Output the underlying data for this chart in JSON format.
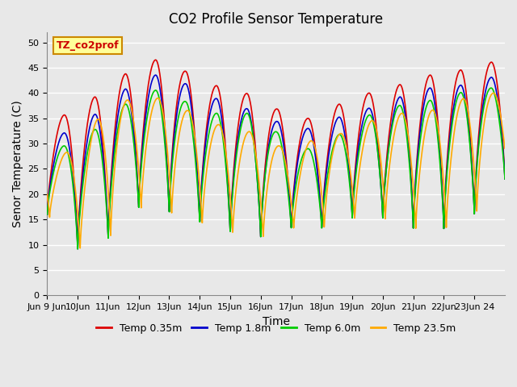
{
  "title": "CO2 Profile Sensor Temperature",
  "xlabel": "Time",
  "ylabel": "Senor Temperature (C)",
  "ylim": [
    0,
    52
  ],
  "xlim_start": 9,
  "xlim_end": 24,
  "xtick_labels": [
    "Jun 9 Jun",
    "10Jun",
    "11Jun",
    "12Jun",
    "13Jun",
    "14Jun",
    "15Jun",
    "16Jun",
    "17Jun",
    "18Jun",
    "19Jun",
    "20Jun",
    "21Jun",
    "22Jun",
    "23Jun 24"
  ],
  "xtick_positions": [
    9,
    10,
    11,
    12,
    13,
    14,
    15,
    16,
    17,
    18,
    19,
    20,
    21,
    22,
    23
  ],
  "legend_box_label": "TZ_co2prof",
  "legend_box_color": "#ffff99",
  "legend_box_border": "#cc8800",
  "lines": [
    {
      "label": "Temp 0.35m",
      "color": "#dd0000",
      "lw": 1.2
    },
    {
      "label": "Temp 1.8m",
      "color": "#0000cc",
      "lw": 1.2
    },
    {
      "label": "Temp 6.0m",
      "color": "#00cc00",
      "lw": 1.2
    },
    {
      "label": "Temp 23.5m",
      "color": "#ffaa00",
      "lw": 1.2
    }
  ],
  "bg_color": "#e8e8e8",
  "plot_bg_color": "#e8e8e8",
  "grid_color": "#ffffff",
  "title_fontsize": 12,
  "axis_label_fontsize": 10,
  "tick_fontsize": 8,
  "peak_temps_red": [
    34,
    37,
    41,
    46,
    47,
    42,
    41,
    39,
    35,
    35,
    40,
    40,
    43,
    44,
    45,
    47
  ],
  "peak_temps_blue": [
    31,
    33,
    38,
    43,
    44,
    40,
    38,
    36,
    33,
    33,
    37,
    37,
    41,
    41,
    42,
    44
  ],
  "peak_temps_green": [
    29,
    30,
    35,
    40,
    41,
    36,
    36,
    36,
    29,
    29,
    34,
    37,
    38,
    39,
    41,
    41
  ],
  "peak_temps_orange": [
    27,
    29,
    38,
    39,
    39,
    35,
    33,
    32,
    28,
    32,
    32,
    36,
    36,
    37,
    40,
    40
  ],
  "valley_temps": [
    16,
    9,
    11,
    17,
    16,
    14,
    12,
    11,
    13,
    13,
    15,
    15,
    13,
    13,
    16,
    23
  ]
}
